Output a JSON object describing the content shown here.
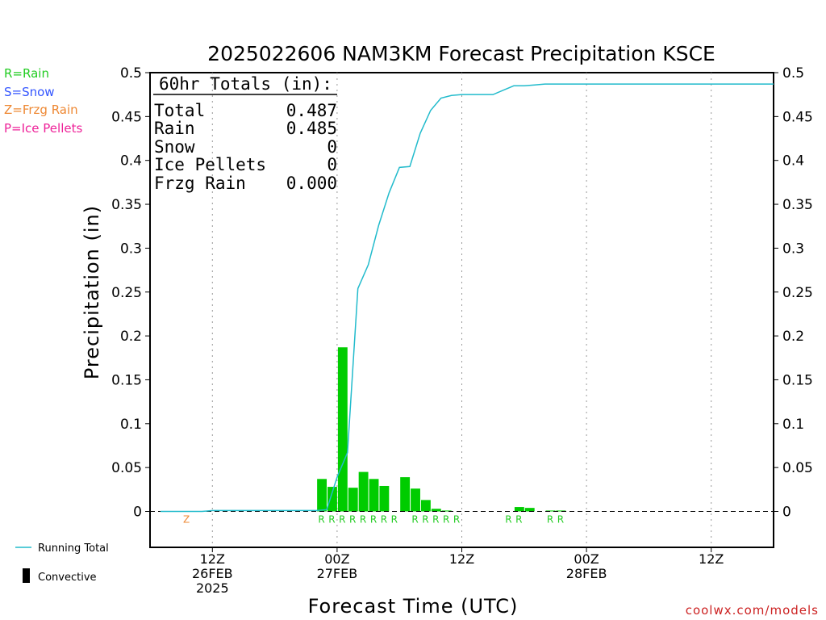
{
  "title": "2025022606 NAM3KM Forecast Precipitation KSCE",
  "credit": "coolwx.com/models",
  "legend_types": [
    {
      "label": "R=Rain",
      "color": "#22cc22"
    },
    {
      "label": "S=Snow",
      "color": "#3355ff"
    },
    {
      "label": "Z=Frzg Rain",
      "color": "#ee8833"
    },
    {
      "label": "P=Ice Pellets",
      "color": "#ee2299"
    }
  ],
  "bottom_legend": {
    "running_total": "Running Total",
    "convective": "Convective",
    "running_total_color": "#22bbcc",
    "convective_color": "#000000"
  },
  "totals": {
    "header": "60hr Totals (in):",
    "rows": [
      {
        "label": "Total",
        "value": "0.487"
      },
      {
        "label": "Rain",
        "value": "0.485"
      },
      {
        "label": "Snow",
        "value": "0"
      },
      {
        "label": "Ice Pellets",
        "value": "0"
      },
      {
        "label": "Frzg Rain",
        "value": "0.000"
      }
    ]
  },
  "chart_data": {
    "type": "bar",
    "title": "2025022606 NAM3KM Forecast Precipitation KSCE",
    "xlabel": "Forecast Time (UTC)",
    "ylabel": "Precipitation (in)",
    "ylim": [
      -0.04,
      0.5
    ],
    "y_ticks": [
      "0",
      "0.05",
      "0.1",
      "0.15",
      "0.2",
      "0.25",
      "0.3",
      "0.35",
      "0.4",
      "0.45",
      "0.5"
    ],
    "xlim_hours": [
      6,
      66
    ],
    "x_ticks": [
      {
        "hour": 12,
        "lines": [
          "12Z",
          "26FEB",
          "2025"
        ]
      },
      {
        "hour": 24,
        "lines": [
          "00Z",
          "27FEB"
        ]
      },
      {
        "hour": 36,
        "lines": [
          "12Z"
        ]
      },
      {
        "hour": 48,
        "lines": [
          "00Z",
          "28FEB"
        ]
      },
      {
        "hour": 60,
        "lines": [
          "12Z"
        ]
      }
    ],
    "grid": true,
    "bar_color": "#00cc00",
    "series": [
      {
        "name": "Hourly Precipitation",
        "x_hours": [
          23,
          24,
          25,
          26,
          27,
          28,
          29,
          31,
          32,
          33,
          34,
          35,
          36,
          38,
          39,
          40,
          41,
          42,
          43,
          44,
          45,
          46
        ],
        "values": [
          0.037,
          0.028,
          0.187,
          0.027,
          0.045,
          0.037,
          0.029,
          0.039,
          0.026,
          0.013,
          0.003,
          0.001,
          0.0,
          0.0,
          0.0,
          0.0,
          0.0,
          0.005,
          0.004,
          0.0,
          0.001,
          0.001
        ]
      },
      {
        "name": "Running Total",
        "x_hours": [
          7,
          8,
          9,
          10,
          11,
          12,
          13,
          14,
          15,
          16,
          17,
          18,
          19,
          20,
          21,
          22,
          23,
          24,
          25,
          26,
          27,
          28,
          29,
          30,
          31,
          32,
          33,
          34,
          35,
          36,
          37,
          38,
          39,
          40,
          41,
          42,
          43,
          44,
          45,
          46,
          47,
          48,
          49,
          50,
          51,
          52,
          53,
          54,
          55,
          56,
          57,
          58,
          59,
          60,
          61,
          62,
          63,
          64,
          65,
          66
        ],
        "values": [
          0.0,
          0.0,
          0.0,
          0.0,
          0.0,
          0.001,
          0.001,
          0.001,
          0.001,
          0.001,
          0.001,
          0.001,
          0.001,
          0.001,
          0.001,
          0.001,
          0.002,
          0.039,
          0.067,
          0.254,
          0.281,
          0.326,
          0.363,
          0.392,
          0.393,
          0.431,
          0.457,
          0.471,
          0.474,
          0.475,
          0.475,
          0.475,
          0.475,
          0.48,
          0.485,
          0.485,
          0.486,
          0.487,
          0.487,
          0.487,
          0.487,
          0.487,
          0.487,
          0.487,
          0.487,
          0.487,
          0.487,
          0.487,
          0.487,
          0.487,
          0.487,
          0.487,
          0.487,
          0.487,
          0.487,
          0.487,
          0.487,
          0.487,
          0.487,
          0.487
        ]
      }
    ],
    "precip_type_labels": [
      {
        "hour": 10,
        "type": "Z"
      },
      {
        "hour": 23,
        "type": "R"
      },
      {
        "hour": 24,
        "type": "R"
      },
      {
        "hour": 25,
        "type": "R"
      },
      {
        "hour": 26,
        "type": "R"
      },
      {
        "hour": 27,
        "type": "R"
      },
      {
        "hour": 28,
        "type": "R"
      },
      {
        "hour": 29,
        "type": "R"
      },
      {
        "hour": 30,
        "type": "R"
      },
      {
        "hour": 32,
        "type": "R"
      },
      {
        "hour": 33,
        "type": "R"
      },
      {
        "hour": 34,
        "type": "R"
      },
      {
        "hour": 35,
        "type": "R"
      },
      {
        "hour": 36,
        "type": "R"
      },
      {
        "hour": 41,
        "type": "R"
      },
      {
        "hour": 42,
        "type": "R"
      },
      {
        "hour": 45,
        "type": "R"
      },
      {
        "hour": 46,
        "type": "R"
      }
    ]
  }
}
